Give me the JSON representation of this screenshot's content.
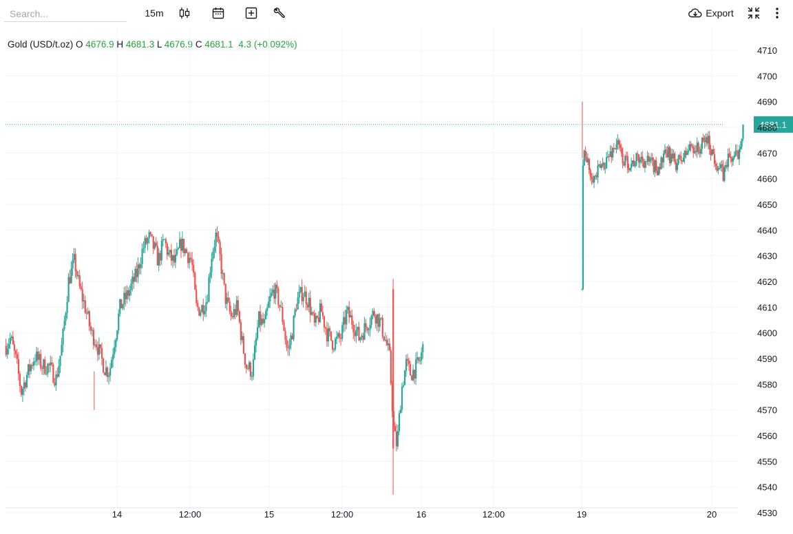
{
  "toolbar": {
    "search_placeholder": "Search...",
    "interval": "15m",
    "export_label": "Export",
    "icons": [
      "candles-icon",
      "calendar-icon",
      "add-indicator-icon",
      "wrench-icon",
      "cloud-download-icon",
      "collapse-icon",
      "more-vertical-icon"
    ]
  },
  "legend": {
    "symbol": "Gold (USD/t.oz)",
    "o_label": "O",
    "o_value": "4676.9",
    "h_label": "H",
    "h_value": "4681.3",
    "l_label": "L",
    "l_value": "4676.9",
    "c_label": "C",
    "c_value": "4681.1",
    "change": "4.3 (+0.092%)"
  },
  "colors": {
    "up": "#26a69a",
    "down": "#ef5350",
    "legend_up": "#26a63a",
    "grid": "#f0f3fa",
    "last_price": "#26a69a"
  },
  "chart_data": {
    "type": "candlestick",
    "title": "",
    "xlabel": "",
    "ylabel": "",
    "ylim": [
      4530,
      4716
    ],
    "yticks": [
      4530,
      4540,
      4550,
      4560,
      4570,
      4580,
      4590,
      4600,
      4610,
      4620,
      4630,
      4640,
      4650,
      4660,
      4670,
      4680,
      4690,
      4700,
      4710
    ],
    "xtick_labels": [
      "14",
      "12:00",
      "15",
      "12:00",
      "16",
      "12:00",
      "19",
      "20"
    ],
    "last_price": "4681.1",
    "grid": true,
    "price_path": [
      {
        "t": 0,
        "p": 4595
      },
      {
        "t": 0.03,
        "p": 4598
      },
      {
        "t": 0.07,
        "p": 4588
      },
      {
        "t": 0.1,
        "p": 4577
      },
      {
        "t": 0.14,
        "p": 4584
      },
      {
        "t": 0.19,
        "p": 4591
      },
      {
        "t": 0.24,
        "p": 4587
      },
      {
        "t": 0.28,
        "p": 4587
      },
      {
        "t": 0.33,
        "p": 4582
      },
      {
        "t": 0.37,
        "p": 4596
      },
      {
        "t": 0.41,
        "p": 4620
      },
      {
        "t": 0.45,
        "p": 4628
      },
      {
        "t": 0.48,
        "p": 4618
      },
      {
        "t": 0.52,
        "p": 4610
      },
      {
        "t": 0.56,
        "p": 4600
      },
      {
        "t": 0.59,
        "p": 4597
      },
      {
        "t": 0.62,
        "p": 4591
      },
      {
        "t": 0.65,
        "p": 4586
      },
      {
        "t": 0.68,
        "p": 4585
      },
      {
        "t": 0.71,
        "p": 4596
      },
      {
        "t": 0.75,
        "p": 4610
      },
      {
        "t": 0.8,
        "p": 4615
      },
      {
        "t": 0.86,
        "p": 4623
      },
      {
        "t": 0.9,
        "p": 4633
      },
      {
        "t": 0.94,
        "p": 4637
      },
      {
        "t": 0.98,
        "p": 4632
      },
      {
        "t": 1.0,
        "p": 4628
      },
      {
        "t": 1.04,
        "p": 4636
      },
      {
        "t": 1.07,
        "p": 4630
      },
      {
        "t": 1.11,
        "p": 4627
      },
      {
        "t": 1.15,
        "p": 4635
      },
      {
        "t": 1.18,
        "p": 4632
      },
      {
        "t": 1.22,
        "p": 4628
      },
      {
        "t": 1.25,
        "p": 4610
      },
      {
        "t": 1.28,
        "p": 4609
      },
      {
        "t": 1.32,
        "p": 4613
      },
      {
        "t": 1.35,
        "p": 4630
      },
      {
        "t": 1.38,
        "p": 4638
      },
      {
        "t": 1.41,
        "p": 4628
      },
      {
        "t": 1.44,
        "p": 4614
      },
      {
        "t": 1.48,
        "p": 4606
      },
      {
        "t": 1.52,
        "p": 4610
      },
      {
        "t": 1.55,
        "p": 4597
      },
      {
        "t": 1.58,
        "p": 4587
      },
      {
        "t": 1.62,
        "p": 4585
      },
      {
        "t": 1.66,
        "p": 4605
      },
      {
        "t": 1.7,
        "p": 4603
      },
      {
        "t": 1.73,
        "p": 4612
      },
      {
        "t": 1.76,
        "p": 4617
      },
      {
        "t": 1.79,
        "p": 4613
      },
      {
        "t": 1.82,
        "p": 4605
      },
      {
        "t": 1.85,
        "p": 4592
      },
      {
        "t": 1.88,
        "p": 4600
      },
      {
        "t": 1.91,
        "p": 4612
      },
      {
        "t": 1.95,
        "p": 4616
      },
      {
        "t": 1.99,
        "p": 4612
      },
      {
        "t": 2.03,
        "p": 4602
      },
      {
        "t": 2.07,
        "p": 4609
      },
      {
        "t": 2.11,
        "p": 4600
      },
      {
        "t": 2.15,
        "p": 4596
      },
      {
        "t": 2.2,
        "p": 4598
      },
      {
        "t": 2.24,
        "p": 4608
      },
      {
        "t": 2.28,
        "p": 4604
      },
      {
        "t": 2.32,
        "p": 4598
      },
      {
        "t": 2.37,
        "p": 4603
      },
      {
        "t": 2.42,
        "p": 4608
      },
      {
        "t": 2.46,
        "p": 4604
      },
      {
        "t": 2.49,
        "p": 4598
      },
      {
        "t": 2.52,
        "p": 4591
      },
      {
        "t": 2.55,
        "p": 4561
      },
      {
        "t": 2.57,
        "p": 4556
      },
      {
        "t": 2.6,
        "p": 4578
      },
      {
        "t": 2.63,
        "p": 4588
      },
      {
        "t": 2.66,
        "p": 4584
      },
      {
        "t": 2.69,
        "p": 4586
      },
      {
        "t": 2.72,
        "p": 4589
      },
      {
        "t": 2.74,
        "p": 4594
      }
    ],
    "gap_open": 4617,
    "day_open": [
      {
        "t": 0,
        "p": 4617
      },
      {
        "t": 0.004,
        "p": 4652
      },
      {
        "t": 0.015,
        "p": 4676
      },
      {
        "t": 0.03,
        "p": 4668
      },
      {
        "t": 0.06,
        "p": 4664
      },
      {
        "t": 0.1,
        "p": 4660
      },
      {
        "t": 0.14,
        "p": 4664
      },
      {
        "t": 0.2,
        "p": 4668
      },
      {
        "t": 0.27,
        "p": 4674
      },
      {
        "t": 0.32,
        "p": 4667
      },
      {
        "t": 0.38,
        "p": 4666
      },
      {
        "t": 0.45,
        "p": 4668
      },
      {
        "t": 0.52,
        "p": 4666
      },
      {
        "t": 0.58,
        "p": 4664
      },
      {
        "t": 0.66,
        "p": 4670
      },
      {
        "t": 0.72,
        "p": 4666
      },
      {
        "t": 0.78,
        "p": 4668
      },
      {
        "t": 0.84,
        "p": 4673
      },
      {
        "t": 0.9,
        "p": 4671
      },
      {
        "t": 0.96,
        "p": 4676
      },
      {
        "t": 1.02,
        "p": 4668
      },
      {
        "t": 1.06,
        "p": 4664
      },
      {
        "t": 1.09,
        "p": 4661
      },
      {
        "t": 1.12,
        "p": 4668
      },
      {
        "t": 1.16,
        "p": 4668
      },
      {
        "t": 1.2,
        "p": 4669
      },
      {
        "t": 1.24,
        "p": 4681.1
      }
    ],
    "spikes": [
      {
        "t": 0.58,
        "low": 4570
      },
      {
        "t": 2.545,
        "low": 4537,
        "high": 4621
      },
      {
        "t": 3.005,
        "high": 4690
      }
    ]
  }
}
